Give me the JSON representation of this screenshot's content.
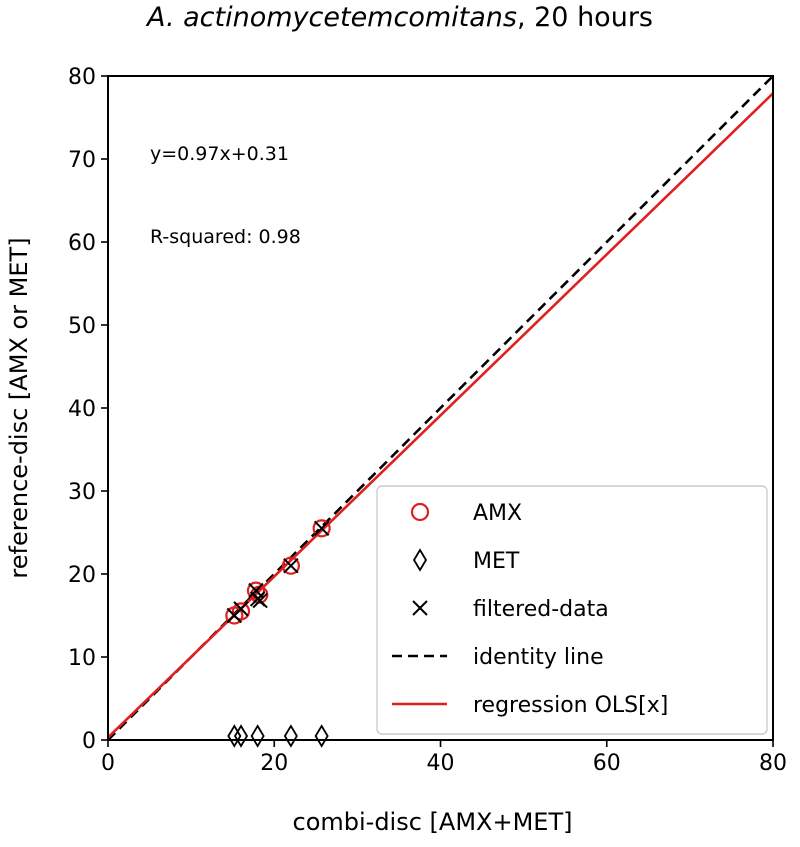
{
  "chart_data": {
    "type": "scatter",
    "title_italic": "A. actinomycetemcomitans",
    "title_rest": ", 20 hours",
    "xlabel": "combi-disc  [AMX+MET]",
    "ylabel": "reference-disc [AMX or MET]",
    "xlim": [
      0,
      80
    ],
    "ylim": [
      0,
      80
    ],
    "xticks": [
      0,
      20,
      40,
      60,
      80
    ],
    "yticks": [
      0,
      10,
      20,
      30,
      40,
      50,
      60,
      70,
      80
    ],
    "annotations": {
      "equation": "y=0.97x+0.31",
      "r_squared": "R-squared:  0.98"
    },
    "series": [
      {
        "name": "AMX",
        "marker": "circle",
        "color": "#e02020",
        "points": [
          [
            15.2,
            15.0
          ],
          [
            16.0,
            15.5
          ],
          [
            17.8,
            18.0
          ],
          [
            18.2,
            17.5
          ],
          [
            22.0,
            21.0
          ],
          [
            25.7,
            25.5
          ]
        ]
      },
      {
        "name": "MET",
        "marker": "diamond",
        "color": "#000000",
        "points": [
          [
            15.2,
            0.3
          ],
          [
            16.0,
            0.3
          ],
          [
            18.0,
            0.3
          ],
          [
            22.0,
            0.3
          ],
          [
            25.7,
            0.3
          ]
        ]
      },
      {
        "name": "filtered-data",
        "marker": "x",
        "color": "#000000",
        "points": [
          [
            15.2,
            15.0
          ],
          [
            16.0,
            15.8
          ],
          [
            17.8,
            18.0
          ],
          [
            18.0,
            17.0
          ],
          [
            18.3,
            16.8
          ],
          [
            22.0,
            21.0
          ],
          [
            25.7,
            25.5
          ]
        ]
      }
    ],
    "lines": [
      {
        "name": "identity line",
        "style": "dashed",
        "color": "#000000",
        "slope": 1.0,
        "intercept": 0.0
      },
      {
        "name": "regression OLS[x]",
        "style": "solid",
        "color": "#e02020",
        "slope": 0.97,
        "intercept": 0.31
      }
    ],
    "legend": {
      "position": "lower-right",
      "entries": [
        {
          "label": "AMX",
          "marker": "circle",
          "color": "#e02020"
        },
        {
          "label": "MET",
          "marker": "diamond",
          "color": "#000000"
        },
        {
          "label": "filtered-data",
          "marker": "x",
          "color": "#000000"
        },
        {
          "label": "identity line",
          "marker": "dashed-line",
          "color": "#000000"
        },
        {
          "label": "regression OLS[x]",
          "marker": "solid-line",
          "color": "#e02020"
        }
      ]
    }
  }
}
